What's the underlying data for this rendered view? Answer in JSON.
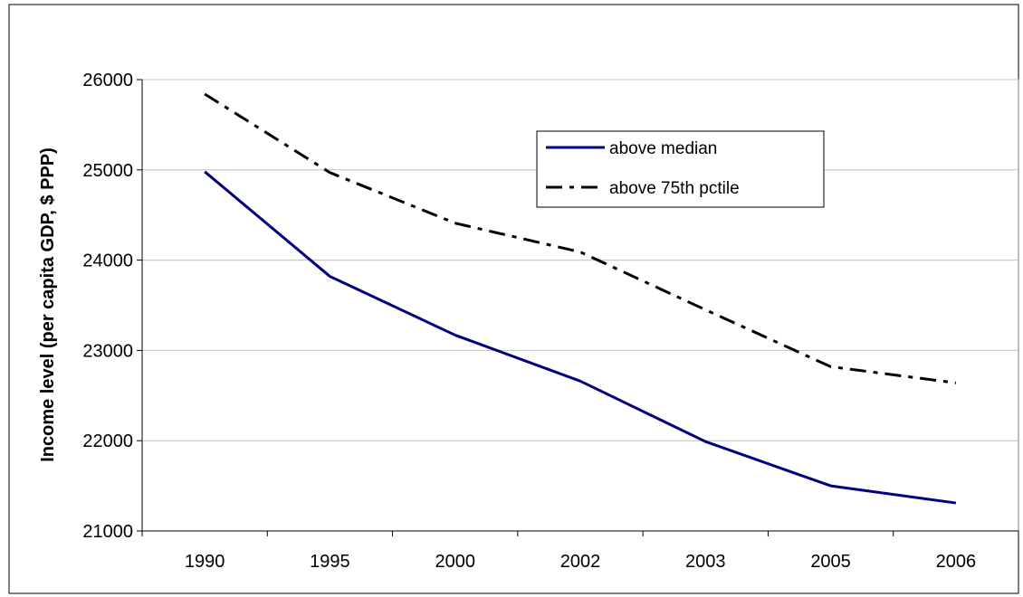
{
  "chart_data": {
    "type": "line",
    "title": "",
    "xlabel": "",
    "ylabel": "Income level (per capita GDP, $ PPP)",
    "categories": [
      "1990",
      "1995",
      "2000",
      "2002",
      "2003",
      "2005",
      "2006"
    ],
    "y_ticks": [
      "21000",
      "22000",
      "23000",
      "24000",
      "25000",
      "26000"
    ],
    "ylim": [
      21000,
      26000
    ],
    "grid": "horizontal",
    "legend_position": "top-right",
    "series": [
      {
        "name": "above median",
        "values": [
          24980,
          23820,
          23170,
          22660,
          21990,
          21500,
          21310
        ],
        "color": "#000080",
        "style": "solid"
      },
      {
        "name": "above 75th pctile",
        "values": [
          25840,
          24970,
          24410,
          24090,
          23450,
          22820,
          22640
        ],
        "color": "#000000",
        "style": "dash-dot"
      }
    ]
  }
}
